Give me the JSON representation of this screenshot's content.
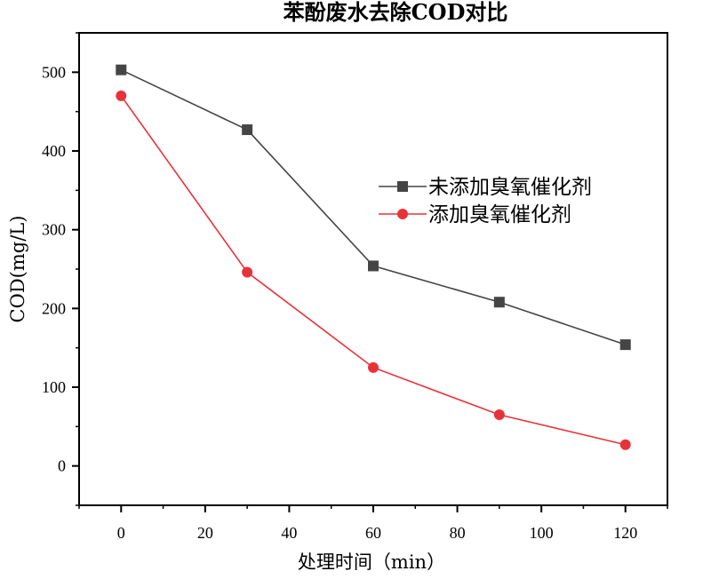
{
  "chart_data": {
    "type": "line",
    "title": "苯酚废水去除COD对比",
    "xlabel": "处理时间（min）",
    "ylabel": "COD(mg/L)",
    "xlim": [
      -10,
      130
    ],
    "ylim": [
      -50,
      550
    ],
    "xticks": [
      0,
      20,
      40,
      60,
      80,
      100,
      120
    ],
    "yticks": [
      0,
      100,
      200,
      300,
      400,
      500
    ],
    "grid": false,
    "legend_position": "right",
    "series": [
      {
        "name": "未添加臭氧催化剂",
        "color": "#454545",
        "marker": "square",
        "x": [
          0,
          30,
          60,
          90,
          120
        ],
        "y": [
          503,
          427,
          254,
          208,
          154
        ]
      },
      {
        "name": "添加臭氧催化剂",
        "color": "#e8323a",
        "marker": "circle",
        "x": [
          0,
          30,
          60,
          90,
          120
        ],
        "y": [
          470,
          246,
          125,
          65,
          27
        ]
      }
    ]
  }
}
